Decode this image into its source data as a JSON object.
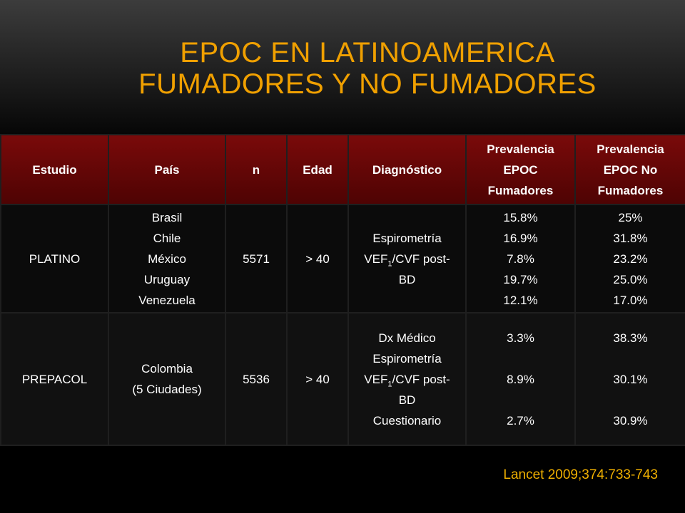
{
  "title": {
    "line1": "EPOC EN LATINOAMERICA",
    "line2": "FUMADORES Y NO FUMADORES"
  },
  "table": {
    "headers": [
      "Estudio",
      "País",
      "n",
      "Edad",
      "Diagnóstico",
      "Prevalencia EPOC Fumadores",
      "Prevalencia EPOC No Fumadores"
    ],
    "header_lines": {
      "prev_fum": [
        "Prevalencia",
        "EPOC",
        "Fumadores"
      ],
      "prev_nofum": [
        "Prevalencia",
        "EPOC No",
        "Fumadores"
      ]
    },
    "rows": [
      {
        "estudio": "PLATINO",
        "pais": [
          "Brasil",
          "Chile",
          "México",
          "Uruguay",
          "Venezuela"
        ],
        "n": "5571",
        "edad": "> 40",
        "diagnostico": {
          "line1": "Espirometría",
          "vef_prefix": "VEF",
          "vef_sub": "1",
          "vef_suffix": "/CVF post-",
          "line3": "BD"
        },
        "prev_fum": [
          "15.8%",
          "16.9%",
          "7.8%",
          "19.7%",
          "12.1%"
        ],
        "prev_nofum": [
          "25%",
          "31.8%",
          "23.2%",
          "25.0%",
          "17.0%"
        ]
      },
      {
        "estudio": "PREPACOL",
        "pais": [
          "Colombia",
          "(5 Ciudades)"
        ],
        "n": "5536",
        "edad": "> 40",
        "diagnostico": {
          "line0": "Dx Médico",
          "line1": "Espirometría",
          "vef_prefix": "VEF",
          "vef_sub": "1",
          "vef_suffix": "/CVF post-",
          "line3": "BD",
          "line4": "Cuestionario"
        },
        "prev_fum": [
          "3.3%",
          "8.9%",
          "2.7%"
        ],
        "prev_nofum": [
          "38.3%",
          "30.1%",
          "30.9%"
        ]
      }
    ]
  },
  "reference": "Lancet 2009;374:733-743",
  "colors": {
    "title": "#f0a000",
    "header_bg": "#6a0808",
    "reference": "#f0b000"
  }
}
